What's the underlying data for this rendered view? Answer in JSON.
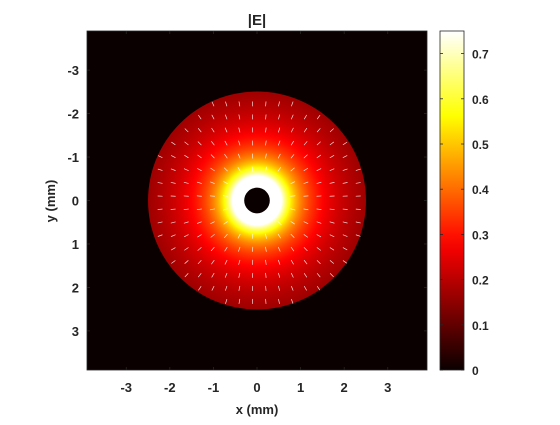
{
  "chart_data": {
    "type": "heatmap",
    "title": "|E|",
    "xlabel": "x (mm)",
    "ylabel": "y (mm)",
    "xlim": [
      -3.9,
      3.9
    ],
    "ylim": [
      -3.9,
      3.9
    ],
    "y_axis_direction": "reversed",
    "x_ticks": [
      -3,
      -2,
      -1,
      0,
      1,
      2,
      3
    ],
    "x_tick_labels": [
      "-3",
      "-2",
      "-1",
      "0",
      "1",
      "2",
      "3"
    ],
    "y_ticks": [
      -3,
      -2,
      -1,
      0,
      1,
      2,
      3
    ],
    "y_tick_labels": [
      "-3",
      "-2",
      "-1",
      "0",
      "1",
      "2",
      "3"
    ],
    "grid": false,
    "colormap": "hot",
    "colorbar": {
      "location": "right",
      "limits": [
        0,
        0.75
      ],
      "ticks": [
        0,
        0.1,
        0.2,
        0.3,
        0.4,
        0.5,
        0.6,
        0.7
      ],
      "tick_labels": [
        "0",
        "0.1",
        "0.2",
        "0.3",
        "0.4",
        "0.5",
        "0.6",
        "0.7"
      ]
    },
    "field": {
      "description": "Coaxial field magnitude, nonzero between inner and outer radius",
      "inner_radius_mm": 0.28,
      "outer_radius_mm": 2.5,
      "max_value": 0.75,
      "value_at_outer_radius": 0.17,
      "outside_value": 0
    },
    "quiver": {
      "color": "#ffffff",
      "grid_spacing_mm": 0.3
    },
    "colors": {
      "background": "#ffffff",
      "axes_outline": "#262626",
      "tick_text": "#262626",
      "outside_field": "#0a0000"
    }
  }
}
